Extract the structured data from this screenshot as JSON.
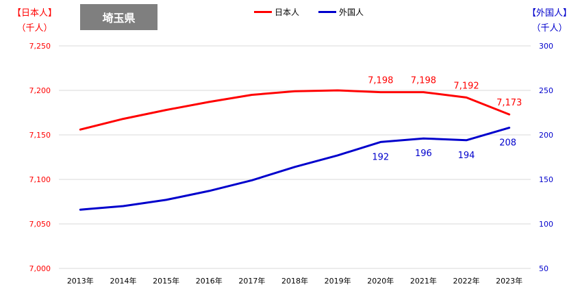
{
  "chart_data": {
    "type": "line",
    "title": "埼玉県",
    "left_axis": {
      "label_line1": "【日本人】",
      "label_line2": "（千人）",
      "range": [
        7000,
        7250
      ],
      "ticks": [
        "7,000",
        "7,050",
        "7,100",
        "7,150",
        "7,200",
        "7,250"
      ],
      "color": "#ff0000"
    },
    "right_axis": {
      "label_line1": "【外国人】",
      "label_line2": "（千人）",
      "range": [
        50,
        300
      ],
      "ticks": [
        "50",
        "100",
        "150",
        "200",
        "250",
        "300"
      ],
      "color": "#0000cc"
    },
    "categories": [
      "2013年",
      "2014年",
      "2015年",
      "2016年",
      "2017年",
      "2018年",
      "2019年",
      "2020年",
      "2021年",
      "2022年",
      "2023年"
    ],
    "series": [
      {
        "name": "日本人",
        "axis": "left",
        "color": "#ff0000",
        "values": [
          7156,
          7168,
          7178,
          7187,
          7195,
          7199,
          7200,
          7198,
          7198,
          7192,
          7173
        ],
        "data_labels": [
          "",
          "",
          "",
          "",
          "",
          "",
          "",
          "7,198",
          "7,198",
          "7,192",
          "7,173"
        ]
      },
      {
        "name": "外国人",
        "axis": "right",
        "color": "#0000cc",
        "values": [
          116,
          120,
          127,
          137,
          149,
          164,
          177,
          192,
          196,
          194,
          208
        ],
        "data_labels": [
          "",
          "",
          "",
          "",
          "",
          "",
          "",
          "192",
          "196",
          "194",
          "208"
        ]
      }
    ],
    "grid": true,
    "legend_position": "top-center"
  }
}
